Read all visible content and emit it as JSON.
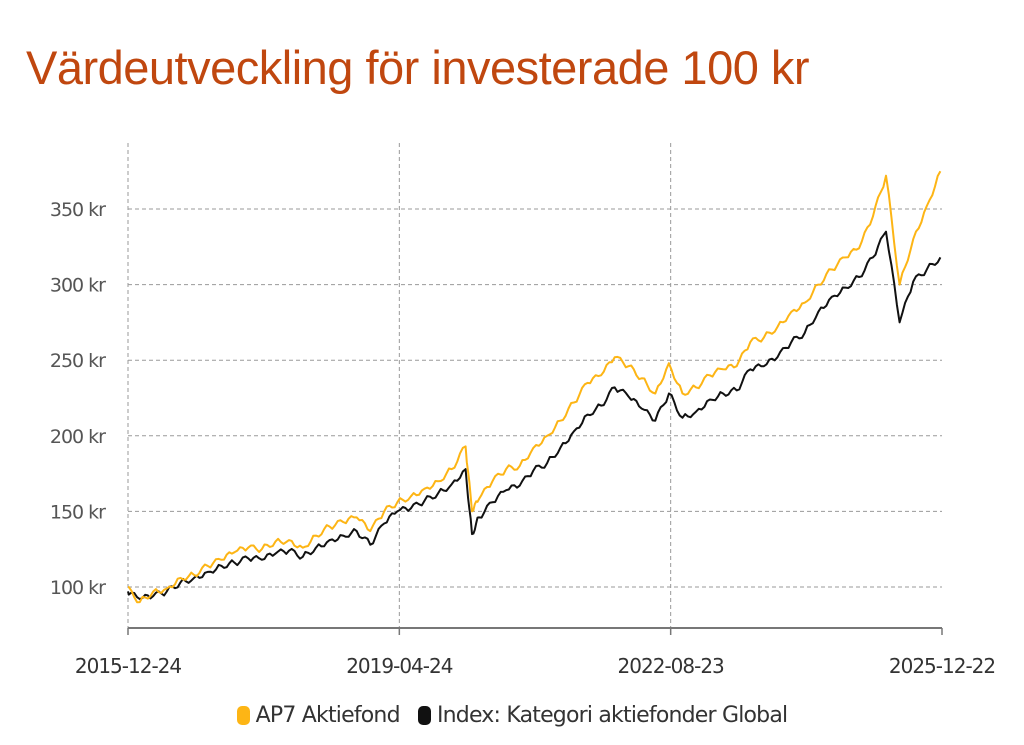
{
  "title": "Värdeutveckling för investerade 100 kr",
  "chart_data": {
    "type": "line",
    "title": "Värdeutveckling för investerade 100 kr",
    "xlabel": "",
    "ylabel": "",
    "ylim": [
      70,
      392
    ],
    "y_ticks": [
      100,
      150,
      200,
      250,
      300,
      350
    ],
    "y_tick_labels": [
      "100 kr",
      "150 kr",
      "200 kr",
      "250 kr",
      "300 kr",
      "350 kr"
    ],
    "x_ticks": [
      "2015-12-24",
      "2019-04-24",
      "2022-08-23",
      "2025-12-22"
    ],
    "x_range": [
      "2015-12-24",
      "2025-12-22"
    ],
    "grid": true,
    "legend_position": "bottom",
    "x": [
      "2015-12",
      "2016-02",
      "2016-04",
      "2016-06",
      "2016-08",
      "2016-10",
      "2016-12",
      "2017-02",
      "2017-04",
      "2017-06",
      "2017-08",
      "2017-10",
      "2017-12",
      "2018-02",
      "2018-04",
      "2018-06",
      "2018-08",
      "2018-10",
      "2018-12",
      "2019-02",
      "2019-04",
      "2019-06",
      "2019-08",
      "2019-10",
      "2019-12",
      "2020-02",
      "2020-03",
      "2020-04",
      "2020-06",
      "2020-08",
      "2020-10",
      "2020-12",
      "2021-02",
      "2021-04",
      "2021-06",
      "2021-08",
      "2021-10",
      "2021-12",
      "2022-02",
      "2022-04",
      "2022-06",
      "2022-08",
      "2022-10",
      "2022-12",
      "2023-02",
      "2023-04",
      "2023-06",
      "2023-08",
      "2023-10",
      "2023-12",
      "2024-02",
      "2024-04",
      "2024-06",
      "2024-08",
      "2024-10",
      "2024-12",
      "2025-02",
      "2025-04",
      "2025-06",
      "2025-08",
      "2025-10",
      "2025-12"
    ],
    "series": [
      {
        "name": "AP7 Aktiefond",
        "color": "#fdb515",
        "values": [
          100,
          90,
          97,
          99,
          106,
          108,
          114,
          118,
          123,
          126,
          125,
          130,
          131,
          126,
          134,
          140,
          143,
          146,
          137,
          150,
          156,
          160,
          165,
          170,
          178,
          193,
          150,
          158,
          170,
          178,
          180,
          192,
          200,
          210,
          222,
          235,
          240,
          252,
          246,
          238,
          228,
          248,
          228,
          232,
          240,
          244,
          246,
          262,
          265,
          272,
          282,
          288,
          300,
          310,
          318,
          324,
          345,
          372,
          300,
          330,
          352,
          375
        ]
      },
      {
        "name": "Index: Kategori aktiefonder Global",
        "color": "#111111",
        "values": [
          97,
          92,
          94,
          97,
          103,
          106,
          110,
          114,
          116,
          119,
          118,
          122,
          124,
          120,
          126,
          131,
          134,
          137,
          128,
          142,
          150,
          152,
          157,
          162,
          168,
          178,
          135,
          146,
          156,
          164,
          167,
          177,
          182,
          192,
          203,
          214,
          220,
          232,
          226,
          218,
          210,
          228,
          212,
          216,
          224,
          228,
          230,
          244,
          246,
          252,
          262,
          268,
          282,
          292,
          298,
          305,
          318,
          335,
          275,
          302,
          310,
          318
        ]
      }
    ]
  },
  "legend": [
    {
      "label": "AP7 Aktiefond",
      "color": "#fdb515"
    },
    {
      "label": "Index: Kategori aktiefonder Global",
      "color": "#111111"
    }
  ]
}
